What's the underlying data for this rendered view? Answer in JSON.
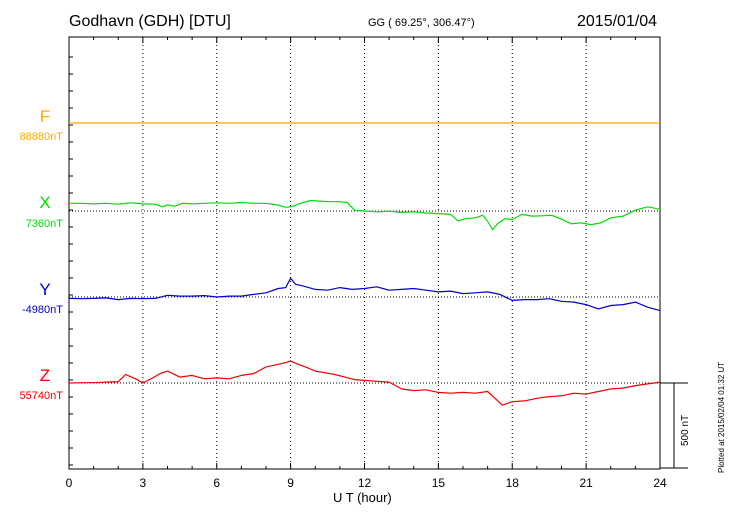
{
  "header": {
    "station": "Godhavn (GDH)  [DTU]",
    "coords": "GG ( 69.25°, 306.47°)",
    "date": "2015/01/04"
  },
  "plotted_note": "Plotted at 2015/02/04 01:32 UT",
  "scale_label": "500 nT",
  "chart_data": {
    "type": "line",
    "xlabel": "U T (hour)",
    "xlim": [
      0,
      24
    ],
    "xticks": [
      0,
      3,
      6,
      9,
      12,
      15,
      18,
      21,
      24
    ],
    "scale_bar_nT": 500,
    "grid": true,
    "series": [
      {
        "name": "F",
        "baseline_label": "88880nT",
        "color": "#ffaa00",
        "x": [
          0,
          2,
          4,
          6,
          8,
          10,
          12,
          14,
          16,
          18,
          20,
          22,
          24
        ],
        "y": [
          0,
          0,
          0,
          0,
          0,
          0,
          0,
          0,
          0,
          0,
          0,
          0,
          0
        ]
      },
      {
        "name": "X",
        "baseline_label": "7360nT",
        "color": "#00dd00",
        "x": [
          0,
          0.5,
          1,
          1.5,
          2,
          2.5,
          3,
          3.5,
          3.8,
          4,
          4.3,
          4.6,
          5,
          5.5,
          6,
          6.5,
          7,
          7.5,
          8,
          8.5,
          8.8,
          9.1,
          9.4,
          9.8,
          10.2,
          10.6,
          11,
          11.3,
          11.6,
          12,
          12.5,
          13,
          13.5,
          14,
          14.5,
          15,
          15.5,
          15.8,
          16.1,
          16.5,
          16.8,
          17,
          17.2,
          17.4,
          17.7,
          18,
          18.4,
          18.8,
          19.2,
          19.6,
          20,
          20.4,
          20.8,
          21.2,
          21.6,
          22,
          22.5,
          23,
          23.5,
          24
        ],
        "y": [
          45,
          45,
          42,
          45,
          40,
          48,
          42,
          40,
          25,
          36,
          28,
          45,
          42,
          45,
          48,
          45,
          50,
          45,
          45,
          35,
          22,
          28,
          45,
          62,
          58,
          55,
          55,
          50,
          5,
          0,
          -5,
          -2,
          -8,
          -5,
          -12,
          -15,
          -20,
          -58,
          -45,
          -40,
          -25,
          -60,
          -110,
          -75,
          -45,
          -50,
          -20,
          -30,
          -28,
          -25,
          -48,
          -75,
          -70,
          -80,
          -70,
          -40,
          -30,
          5,
          25,
          10
        ]
      },
      {
        "name": "Y",
        "baseline_label": "-4980nT",
        "color": "#0000cc",
        "x": [
          0,
          0.5,
          1,
          1.5,
          2,
          2.5,
          3,
          3.5,
          4,
          4.5,
          5,
          5.5,
          6,
          6.5,
          7,
          7.5,
          8,
          8.5,
          8.8,
          9,
          9.2,
          9.5,
          10,
          10.5,
          11,
          11.5,
          12,
          12.5,
          13,
          13.5,
          14,
          14.5,
          15,
          15.5,
          16,
          16.5,
          17,
          17.5,
          18,
          18.5,
          19,
          19.5,
          20,
          20.5,
          21,
          21.5,
          22,
          22.5,
          23,
          23.5,
          24
        ],
        "y": [
          -8,
          -10,
          -8,
          -5,
          -15,
          -8,
          -10,
          -8,
          10,
          5,
          5,
          8,
          0,
          5,
          5,
          15,
          25,
          50,
          55,
          110,
          75,
          65,
          45,
          40,
          55,
          45,
          50,
          60,
          40,
          45,
          50,
          40,
          30,
          35,
          20,
          25,
          30,
          15,
          -20,
          -15,
          -15,
          -10,
          -25,
          -30,
          -45,
          -70,
          -50,
          -45,
          -30,
          -60,
          -80
        ]
      },
      {
        "name": "Z",
        "baseline_label": "55740nT",
        "color": "#ee0000",
        "x": [
          0,
          0.5,
          1,
          1.5,
          2,
          2.3,
          2.7,
          3,
          3.4,
          3.7,
          4,
          4.5,
          5,
          5.5,
          6,
          6.5,
          7,
          7.5,
          8,
          8.5,
          8.8,
          9,
          9.3,
          9.6,
          10,
          10.4,
          10.8,
          11.2,
          11.6,
          12,
          12.5,
          13,
          13.5,
          14,
          14.5,
          15,
          15.5,
          16,
          16.5,
          17,
          17.3,
          17.6,
          18,
          18.5,
          19,
          19.5,
          20,
          20.5,
          21,
          21.5,
          22,
          22.5,
          23,
          23.5,
          24
        ],
        "y": [
          0,
          2,
          2,
          5,
          8,
          50,
          25,
          0,
          30,
          55,
          70,
          35,
          45,
          25,
          30,
          25,
          45,
          55,
          95,
          110,
          120,
          130,
          110,
          95,
          70,
          60,
          50,
          35,
          20,
          15,
          10,
          5,
          -35,
          -45,
          -40,
          -55,
          -60,
          -55,
          -60,
          -50,
          -90,
          -130,
          -110,
          -105,
          -90,
          -80,
          -75,
          -60,
          -65,
          -50,
          -35,
          -30,
          -15,
          -5,
          5
        ]
      }
    ]
  }
}
